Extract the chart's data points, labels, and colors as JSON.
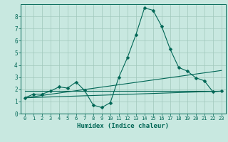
{
  "xlabel": "Humidex (Indice chaleur)",
  "xlim": [
    -0.5,
    23.5
  ],
  "ylim": [
    0,
    9
  ],
  "yticks": [
    0,
    1,
    2,
    3,
    4,
    5,
    6,
    7,
    8
  ],
  "xticks": [
    0,
    1,
    2,
    3,
    4,
    5,
    6,
    7,
    8,
    9,
    10,
    11,
    12,
    13,
    14,
    15,
    16,
    17,
    18,
    19,
    20,
    21,
    22,
    23
  ],
  "background_color": "#c8e8e0",
  "grid_color": "#a0c8bc",
  "line_color": "#006655",
  "line1_x": [
    0,
    1,
    2,
    3,
    4,
    5,
    6,
    7,
    8,
    9,
    10,
    11,
    12,
    13,
    14,
    15,
    16,
    17,
    18,
    19,
    20,
    21,
    22,
    23
  ],
  "line1_y": [
    1.3,
    1.6,
    1.6,
    1.85,
    2.2,
    2.1,
    2.6,
    1.9,
    0.7,
    0.5,
    0.9,
    3.0,
    4.6,
    6.5,
    8.7,
    8.5,
    7.2,
    5.3,
    3.8,
    3.5,
    2.95,
    2.7,
    1.8,
    1.85
  ],
  "line2_x": [
    0,
    23
  ],
  "line2_y": [
    1.3,
    1.85
  ],
  "line3_x": [
    0,
    23
  ],
  "line3_y": [
    1.3,
    3.55
  ],
  "line4_x": [
    0,
    23
  ],
  "line4_y": [
    1.85,
    1.85
  ],
  "marker_size": 2.5,
  "line_width": 0.8
}
